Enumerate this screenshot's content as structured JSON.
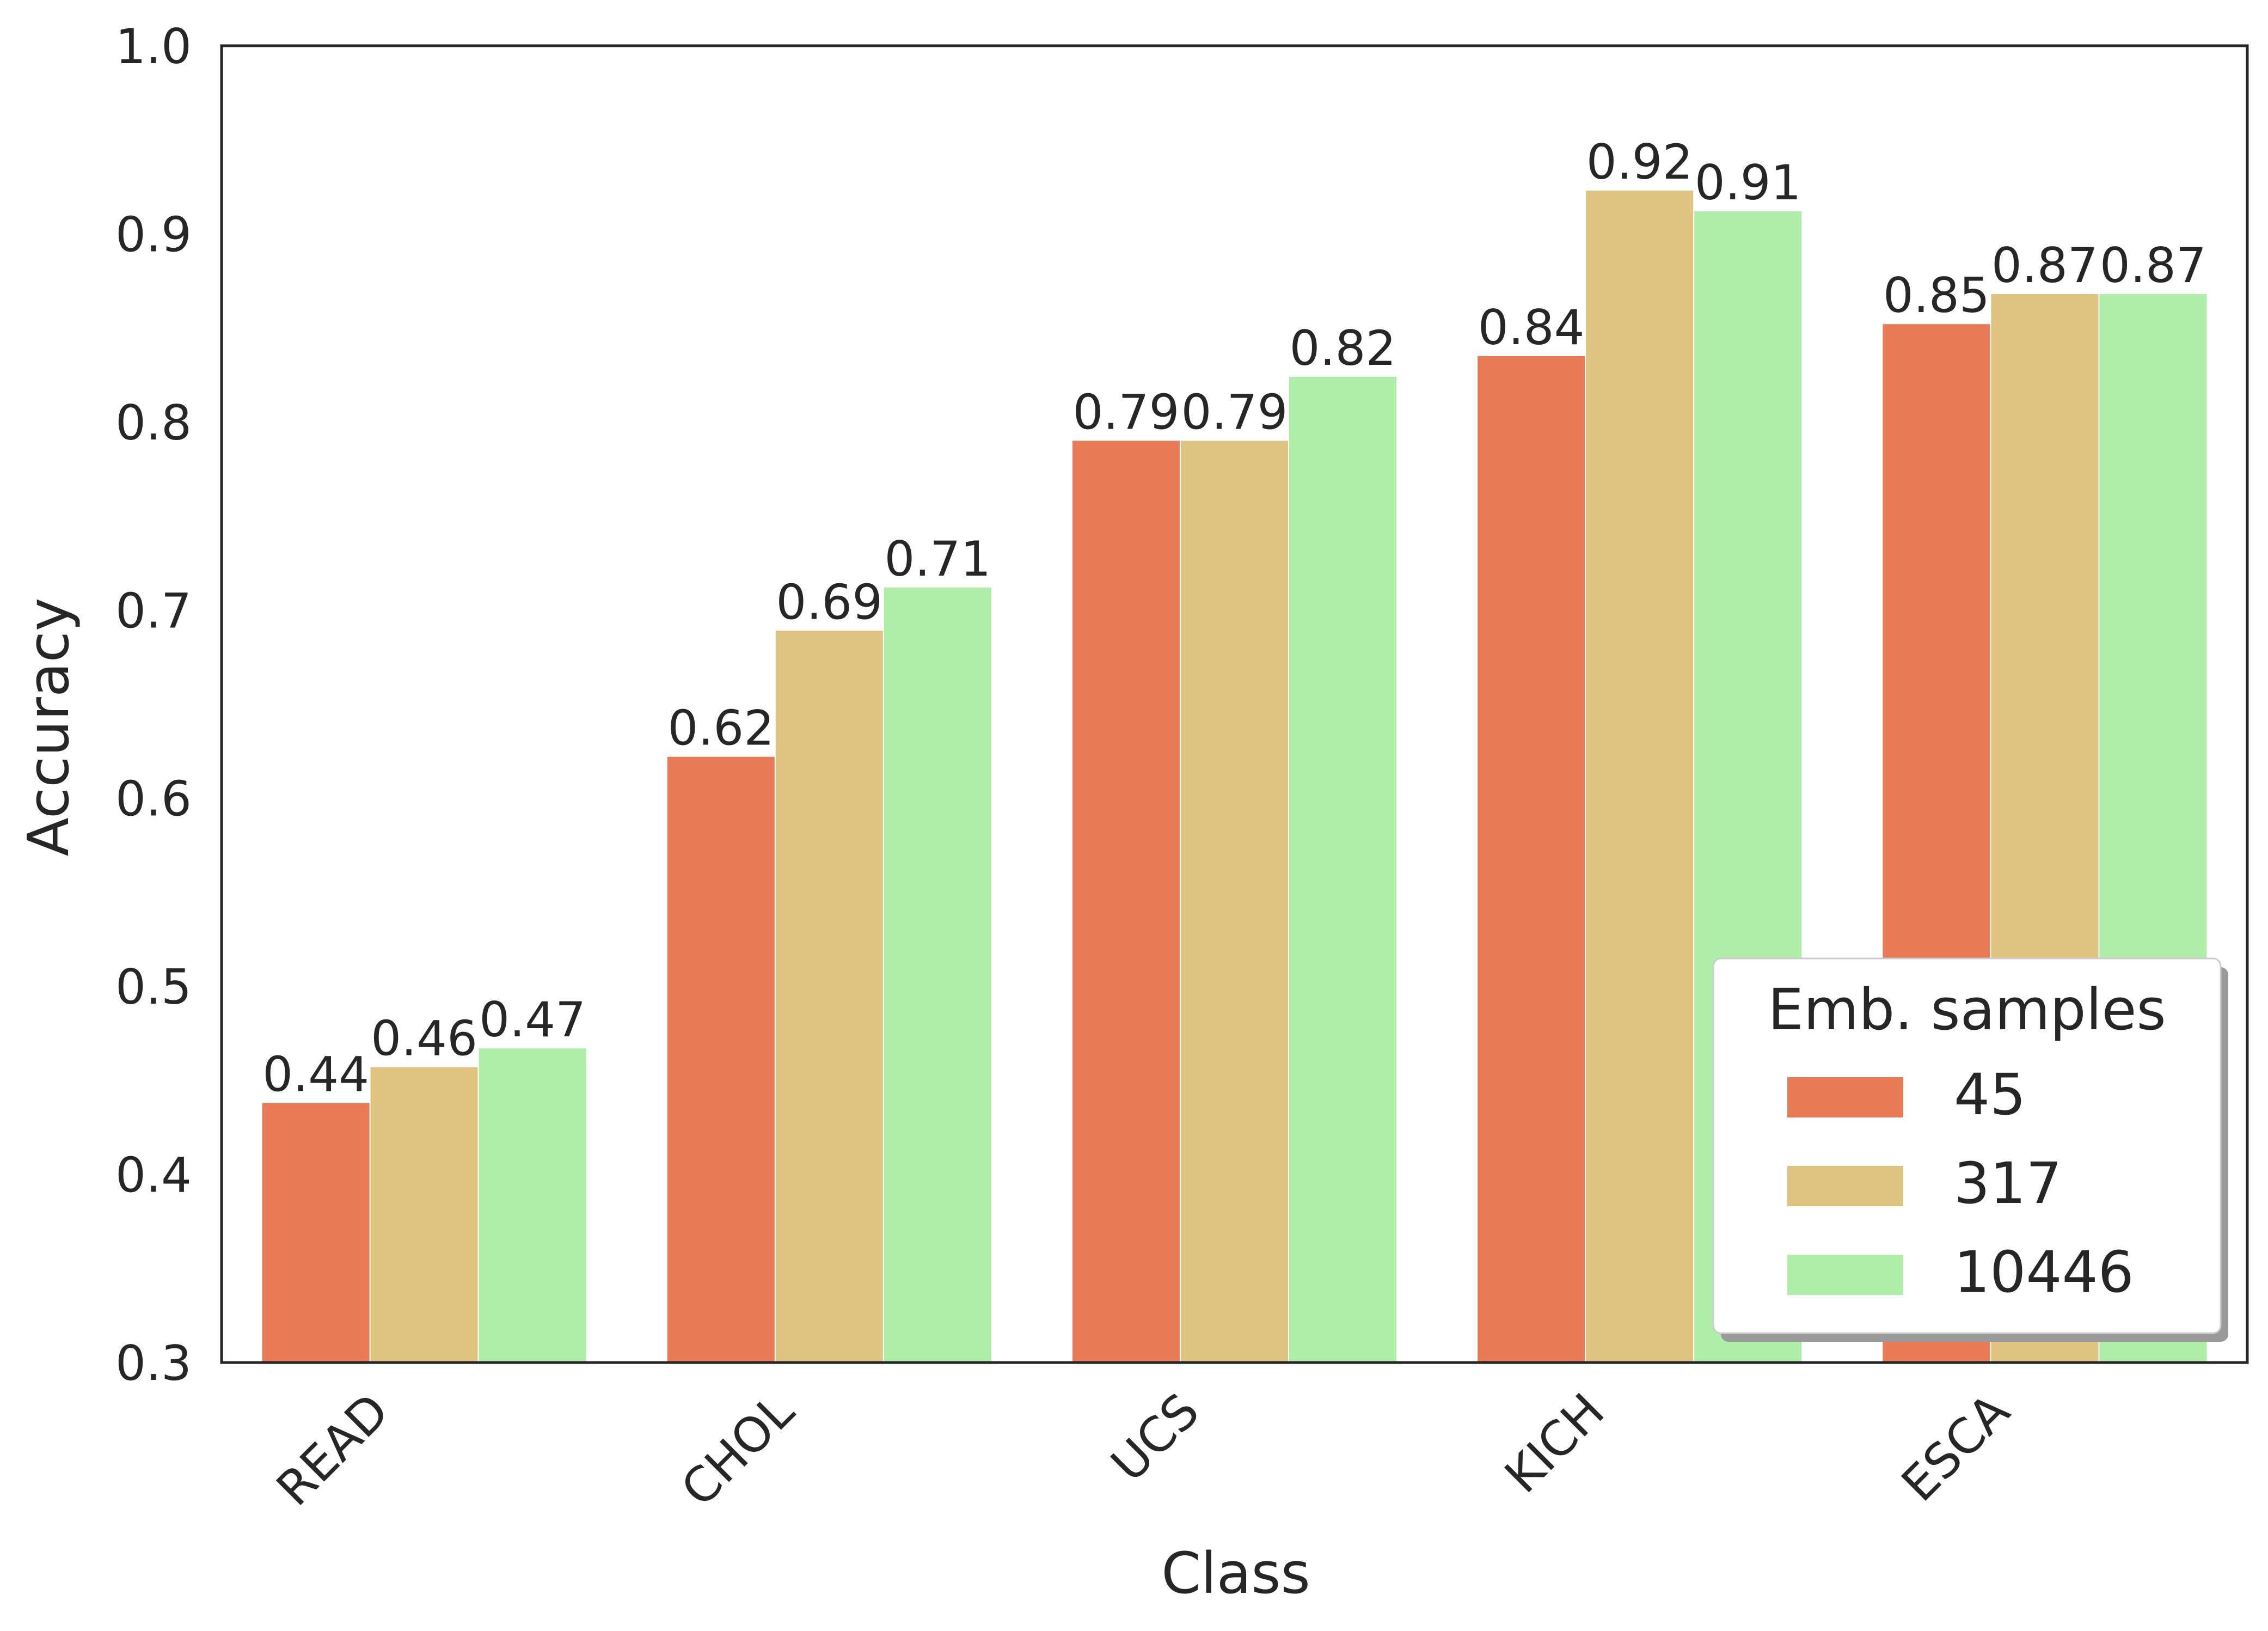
{
  "chart_data": {
    "type": "bar",
    "xlabel": "Class",
    "ylabel": "Accuracy",
    "categories": [
      "READ",
      "CHOL",
      "UCS",
      "KICH",
      "ESCA"
    ],
    "ylim": [
      0.3,
      1.0
    ],
    "yticks": [
      "0.3",
      "0.4",
      "0.5",
      "0.6",
      "0.7",
      "0.8",
      "0.9",
      "1.0"
    ],
    "grid": false,
    "legend": {
      "title": "Emb. samples",
      "placement": "lower right"
    },
    "series": [
      {
        "name": "45",
        "color": "#e87a55",
        "values": [
          0.438,
          0.622,
          0.79,
          0.835,
          0.852
        ],
        "labels": [
          "0.44",
          "0.62",
          "0.79",
          "0.84",
          "0.85"
        ]
      },
      {
        "name": "317",
        "color": "#dec381",
        "values": [
          0.457,
          0.689,
          0.79,
          0.923,
          0.868
        ],
        "labels": [
          "0.46",
          "0.69",
          "0.79",
          "0.92",
          "0.87"
        ]
      },
      {
        "name": "10446",
        "color": "#aeeea9",
        "values": [
          0.467,
          0.712,
          0.824,
          0.912,
          0.868
        ],
        "labels": [
          "0.47",
          "0.71",
          "0.82",
          "0.91",
          "0.87"
        ]
      }
    ]
  }
}
